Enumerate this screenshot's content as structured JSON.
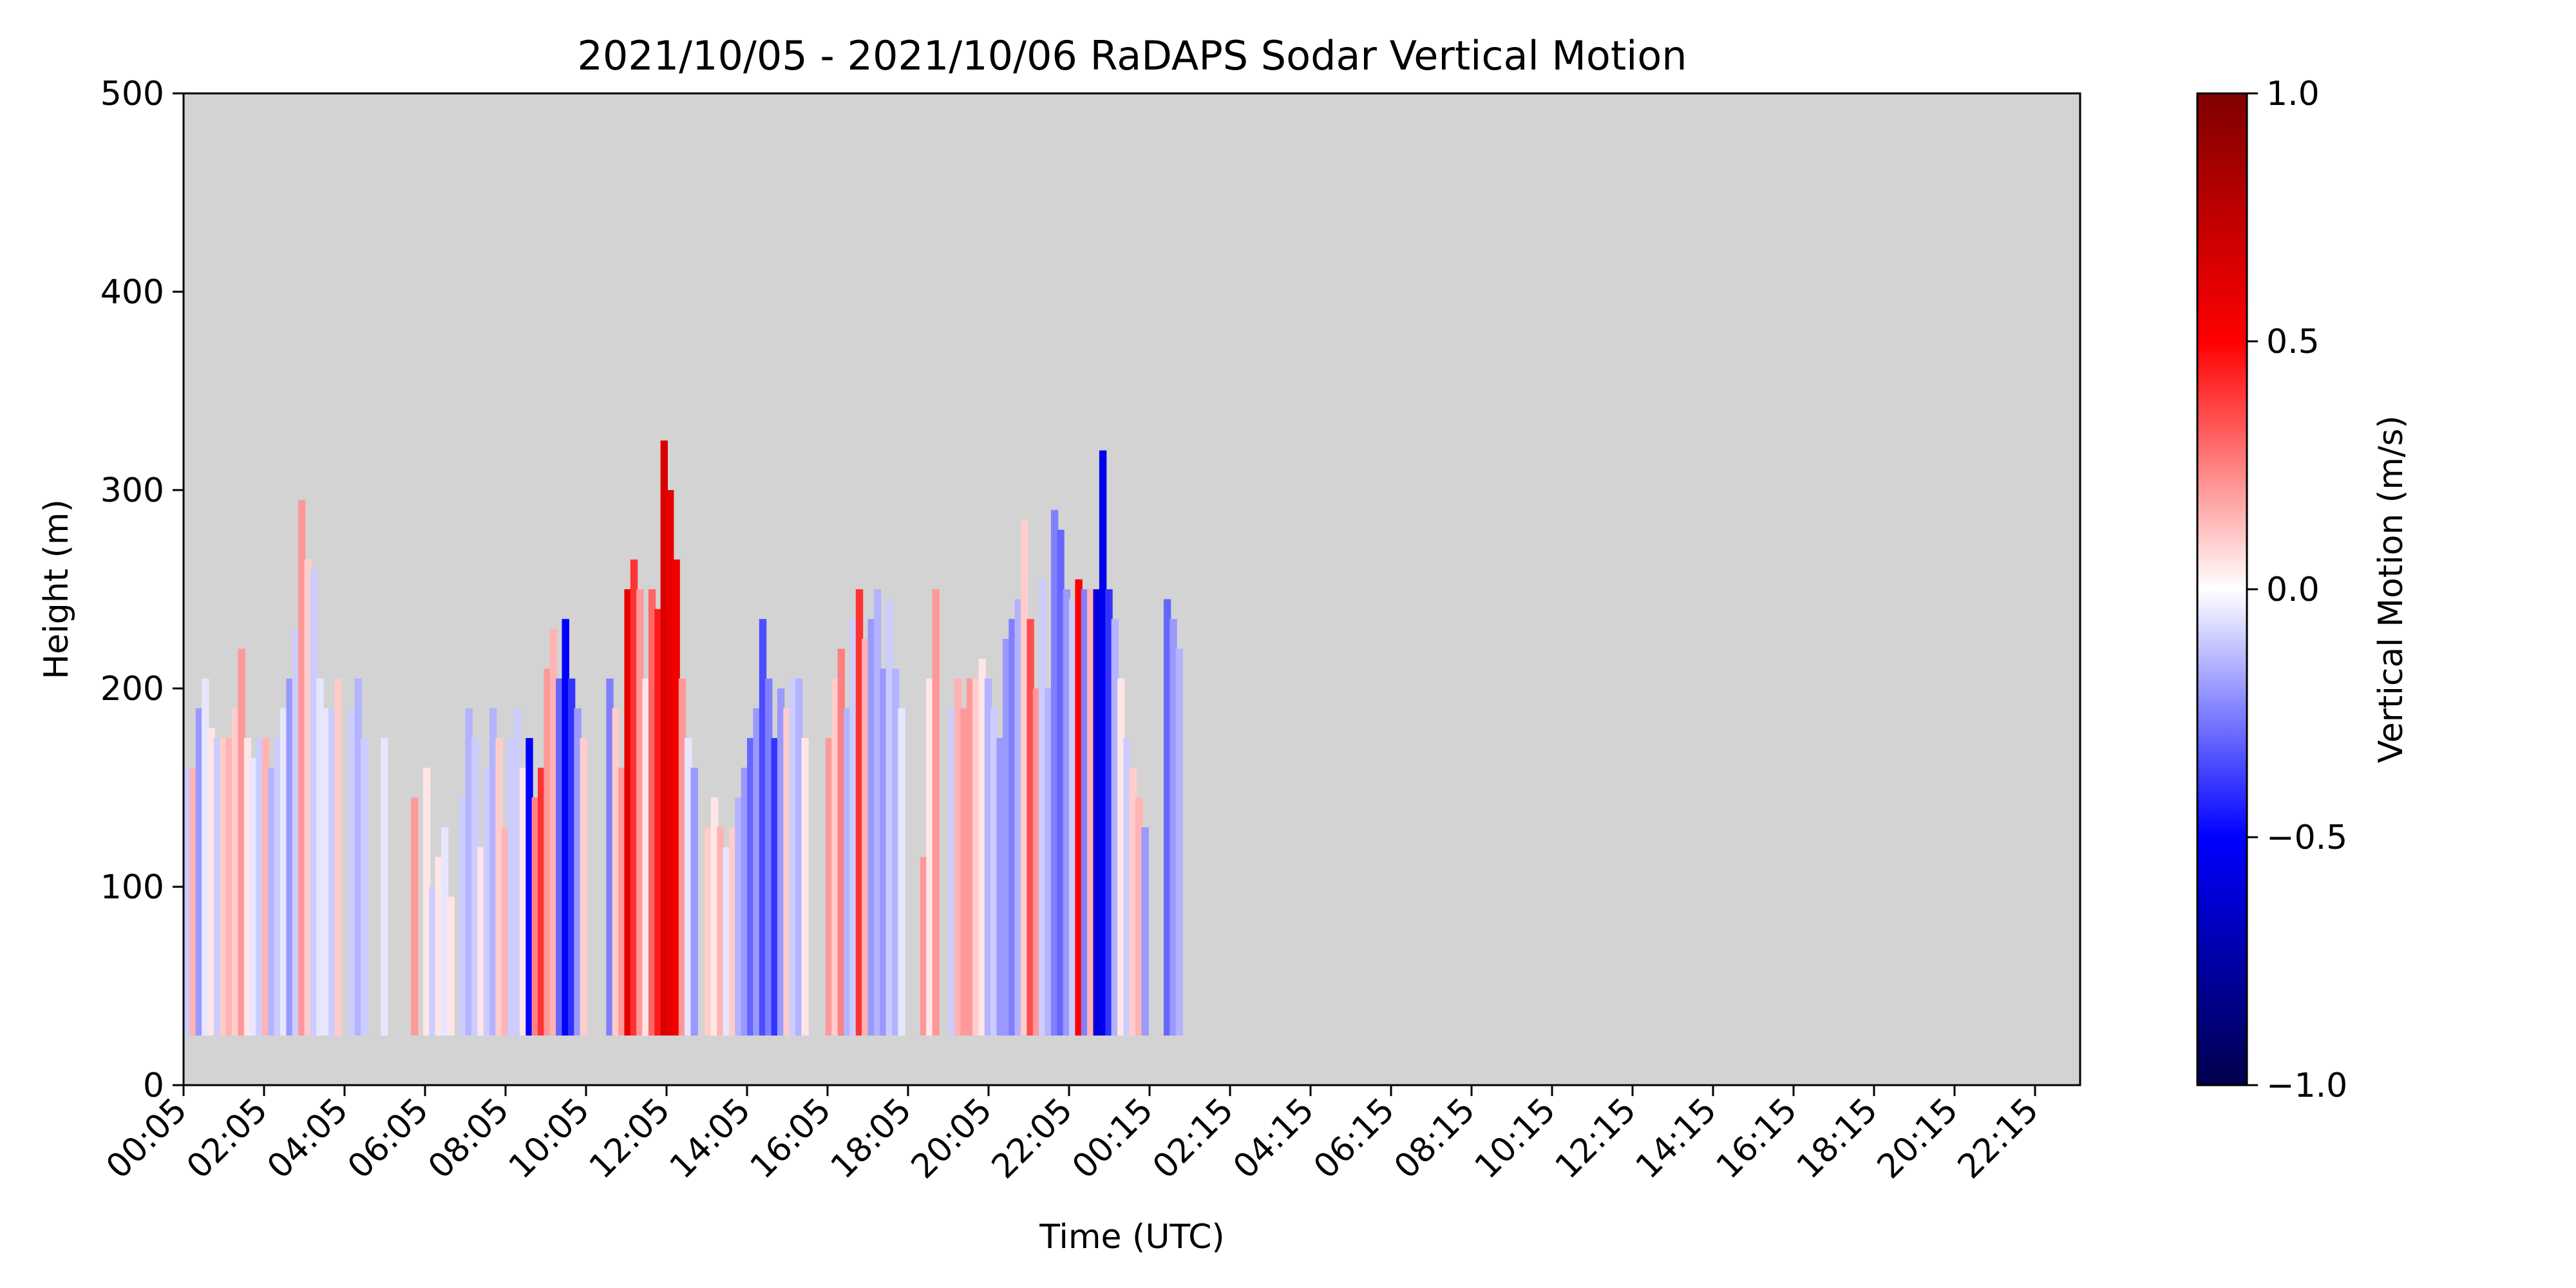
{
  "chart_data": {
    "type": "heatmap",
    "title": "2021/10/05 - 2021/10/06 RaDAPS Sodar Vertical Motion",
    "xlabel": "Time (UTC)",
    "ylabel": "Height (m)",
    "x_tick_labels": [
      "00:05",
      "02:05",
      "04:05",
      "06:05",
      "08:05",
      "10:05",
      "12:05",
      "14:05",
      "16:05",
      "18:05",
      "20:05",
      "22:05",
      "00:15",
      "02:15",
      "04:15",
      "06:15",
      "08:15",
      "10:15",
      "12:15",
      "14:15",
      "16:15",
      "18:15",
      "20:15",
      "22:15"
    ],
    "ylim": [
      0,
      500
    ],
    "y_ticks": [
      0,
      100,
      200,
      300,
      400,
      500
    ],
    "colorbar": {
      "label": "Vertical Motion (m/s)",
      "range": [
        -1.0,
        1.0
      ],
      "ticks": [
        "1.0",
        "0.5",
        "0.0",
        "−0.5",
        "−1.0"
      ],
      "colormap": "seismic",
      "colors": {
        "low": "#00004c",
        "mid_low": "#0000ff",
        "mid": "#ffffff",
        "mid_high": "#ff0000",
        "high": "#800000"
      }
    },
    "background_color": "#d3d3d3",
    "min_height": 25,
    "x_units": "hours since 2021/10/05 00:05 UTC",
    "columns": [
      {
        "x": 0.0,
        "top": 160,
        "w": -0.1
      },
      {
        "x": 0.15,
        "top": 160,
        "w": 0.15
      },
      {
        "x": 0.3,
        "top": 190,
        "w": -0.2
      },
      {
        "x": 0.45,
        "top": 205,
        "w": -0.05
      },
      {
        "x": 0.6,
        "top": 180,
        "w": 0.05
      },
      {
        "x": 0.75,
        "top": 175,
        "w": -0.1
      },
      {
        "x": 0.9,
        "top": 175,
        "w": 0.1
      },
      {
        "x": 1.05,
        "top": 175,
        "w": 0.15
      },
      {
        "x": 1.2,
        "top": 190,
        "w": 0.1
      },
      {
        "x": 1.35,
        "top": 220,
        "w": 0.2
      },
      {
        "x": 1.5,
        "top": 175,
        "w": 0.05
      },
      {
        "x": 1.65,
        "top": 165,
        "w": -0.05
      },
      {
        "x": 1.8,
        "top": 175,
        "w": -0.1
      },
      {
        "x": 1.95,
        "top": 175,
        "w": 0.15
      },
      {
        "x": 2.1,
        "top": 160,
        "w": -0.15
      },
      {
        "x": 2.25,
        "top": 175,
        "w": -0.1
      },
      {
        "x": 2.4,
        "top": 190,
        "w": -0.05
      },
      {
        "x": 2.55,
        "top": 205,
        "w": -0.2
      },
      {
        "x": 2.7,
        "top": 230,
        "w": -0.1
      },
      {
        "x": 2.85,
        "top": 295,
        "w": 0.2
      },
      {
        "x": 3.0,
        "top": 265,
        "w": 0.1
      },
      {
        "x": 3.15,
        "top": 260,
        "w": -0.1
      },
      {
        "x": 3.3,
        "top": 205,
        "w": -0.05
      },
      {
        "x": 3.45,
        "top": 190,
        "w": -0.05
      },
      {
        "x": 3.6,
        "top": 190,
        "w": -0.1
      },
      {
        "x": 3.75,
        "top": 205,
        "w": 0.1
      },
      {
        "x": 4.1,
        "top": 190,
        "w": -0.1
      },
      {
        "x": 4.25,
        "top": 205,
        "w": -0.15
      },
      {
        "x": 4.4,
        "top": 175,
        "w": -0.1
      },
      {
        "x": 4.9,
        "top": 175,
        "w": -0.05
      },
      {
        "x": 5.65,
        "top": 145,
        "w": 0.2
      },
      {
        "x": 5.95,
        "top": 160,
        "w": 0.05
      },
      {
        "x": 6.1,
        "top": 100,
        "w": -0.1
      },
      {
        "x": 6.25,
        "top": 115,
        "w": 0.05
      },
      {
        "x": 6.4,
        "top": 130,
        "w": -0.05
      },
      {
        "x": 6.55,
        "top": 95,
        "w": 0.05
      },
      {
        "x": 6.85,
        "top": 145,
        "w": -0.1
      },
      {
        "x": 7.0,
        "top": 190,
        "w": -0.15
      },
      {
        "x": 7.15,
        "top": 175,
        "w": -0.1
      },
      {
        "x": 7.3,
        "top": 120,
        "w": 0.05
      },
      {
        "x": 7.45,
        "top": 160,
        "w": -0.1
      },
      {
        "x": 7.6,
        "top": 190,
        "w": -0.15
      },
      {
        "x": 7.75,
        "top": 175,
        "w": 0.1
      },
      {
        "x": 7.9,
        "top": 130,
        "w": 0.15
      },
      {
        "x": 8.05,
        "top": 175,
        "w": -0.1
      },
      {
        "x": 8.2,
        "top": 190,
        "w": -0.1
      },
      {
        "x": 8.35,
        "top": 160,
        "w": 0.05
      },
      {
        "x": 8.5,
        "top": 175,
        "w": -0.5
      },
      {
        "x": 8.65,
        "top": 145,
        "w": 0.25
      },
      {
        "x": 8.8,
        "top": 160,
        "w": 0.4
      },
      {
        "x": 8.95,
        "top": 210,
        "w": 0.2
      },
      {
        "x": 9.1,
        "top": 230,
        "w": 0.15
      },
      {
        "x": 9.25,
        "top": 205,
        "w": -0.3
      },
      {
        "x": 9.4,
        "top": 235,
        "w": -0.5
      },
      {
        "x": 9.55,
        "top": 205,
        "w": -0.4
      },
      {
        "x": 9.7,
        "top": 190,
        "w": -0.2
      },
      {
        "x": 9.85,
        "top": 175,
        "w": 0.1
      },
      {
        "x": 10.5,
        "top": 205,
        "w": -0.25
      },
      {
        "x": 10.65,
        "top": 190,
        "w": 0.1
      },
      {
        "x": 10.8,
        "top": 160,
        "w": 0.2
      },
      {
        "x": 10.95,
        "top": 250,
        "w": 0.6
      },
      {
        "x": 11.1,
        "top": 265,
        "w": 0.4
      },
      {
        "x": 11.25,
        "top": 250,
        "w": 0.2
      },
      {
        "x": 11.4,
        "top": 205,
        "w": 0.05
      },
      {
        "x": 11.55,
        "top": 250,
        "w": 0.3
      },
      {
        "x": 11.7,
        "top": 240,
        "w": 0.45
      },
      {
        "x": 11.85,
        "top": 325,
        "w": 0.65
      },
      {
        "x": 12.0,
        "top": 300,
        "w": 0.6
      },
      {
        "x": 12.15,
        "top": 265,
        "w": 0.55
      },
      {
        "x": 12.3,
        "top": 205,
        "w": 0.2
      },
      {
        "x": 12.45,
        "top": 175,
        "w": -0.05
      },
      {
        "x": 12.6,
        "top": 160,
        "w": -0.2
      },
      {
        "x": 12.95,
        "top": 130,
        "w": 0.1
      },
      {
        "x": 13.1,
        "top": 145,
        "w": 0.05
      },
      {
        "x": 13.25,
        "top": 130,
        "w": 0.15
      },
      {
        "x": 13.4,
        "top": 120,
        "w": -0.05
      },
      {
        "x": 13.55,
        "top": 130,
        "w": 0.1
      },
      {
        "x": 13.7,
        "top": 145,
        "w": -0.15
      },
      {
        "x": 13.85,
        "top": 160,
        "w": -0.2
      },
      {
        "x": 14.0,
        "top": 175,
        "w": -0.3
      },
      {
        "x": 14.15,
        "top": 190,
        "w": -0.2
      },
      {
        "x": 14.3,
        "top": 235,
        "w": -0.35
      },
      {
        "x": 14.45,
        "top": 205,
        "w": -0.25
      },
      {
        "x": 14.6,
        "top": 175,
        "w": -0.4
      },
      {
        "x": 14.75,
        "top": 200,
        "w": -0.2
      },
      {
        "x": 14.9,
        "top": 190,
        "w": 0.1
      },
      {
        "x": 15.05,
        "top": 205,
        "w": -0.1
      },
      {
        "x": 15.2,
        "top": 205,
        "w": -0.15
      },
      {
        "x": 15.35,
        "top": 175,
        "w": 0.05
      },
      {
        "x": 15.95,
        "top": 175,
        "w": 0.2
      },
      {
        "x": 16.1,
        "top": 205,
        "w": 0.1
      },
      {
        "x": 16.25,
        "top": 220,
        "w": 0.25
      },
      {
        "x": 16.4,
        "top": 190,
        "w": -0.15
      },
      {
        "x": 16.55,
        "top": 235,
        "w": -0.1
      },
      {
        "x": 16.7,
        "top": 250,
        "w": 0.4
      },
      {
        "x": 16.85,
        "top": 225,
        "w": 0.15
      },
      {
        "x": 17.0,
        "top": 235,
        "w": -0.2
      },
      {
        "x": 17.15,
        "top": 250,
        "w": -0.15
      },
      {
        "x": 17.3,
        "top": 210,
        "w": -0.2
      },
      {
        "x": 17.45,
        "top": 245,
        "w": -0.1
      },
      {
        "x": 17.6,
        "top": 210,
        "w": -0.15
      },
      {
        "x": 17.75,
        "top": 190,
        "w": -0.05
      },
      {
        "x": 18.3,
        "top": 115,
        "w": 0.2
      },
      {
        "x": 18.45,
        "top": 205,
        "w": 0.05
      },
      {
        "x": 18.6,
        "top": 250,
        "w": 0.2
      },
      {
        "x": 19.0,
        "top": 190,
        "w": -0.1
      },
      {
        "x": 19.15,
        "top": 205,
        "w": 0.15
      },
      {
        "x": 19.3,
        "top": 190,
        "w": 0.2
      },
      {
        "x": 19.45,
        "top": 205,
        "w": 0.2
      },
      {
        "x": 19.6,
        "top": 205,
        "w": 0.1
      },
      {
        "x": 19.75,
        "top": 215,
        "w": 0.05
      },
      {
        "x": 19.9,
        "top": 205,
        "w": -0.15
      },
      {
        "x": 20.05,
        "top": 190,
        "w": -0.1
      },
      {
        "x": 20.2,
        "top": 175,
        "w": -0.2
      },
      {
        "x": 20.35,
        "top": 225,
        "w": -0.2
      },
      {
        "x": 20.5,
        "top": 235,
        "w": -0.25
      },
      {
        "x": 20.65,
        "top": 245,
        "w": -0.15
      },
      {
        "x": 20.8,
        "top": 285,
        "w": 0.1
      },
      {
        "x": 20.95,
        "top": 235,
        "w": 0.35
      },
      {
        "x": 21.1,
        "top": 200,
        "w": 0.2
      },
      {
        "x": 21.25,
        "top": 255,
        "w": -0.1
      },
      {
        "x": 21.4,
        "top": 200,
        "w": -0.15
      },
      {
        "x": 21.55,
        "top": 290,
        "w": -0.25
      },
      {
        "x": 21.7,
        "top": 280,
        "w": -0.3
      },
      {
        "x": 21.85,
        "top": 250,
        "w": -0.2
      },
      {
        "x": 22.0,
        "top": 245,
        "w": -0.1
      },
      {
        "x": 22.15,
        "top": 255,
        "w": 0.5
      },
      {
        "x": 22.3,
        "top": 250,
        "w": -0.25
      },
      {
        "x": 22.45,
        "top": 250,
        "w": 0.15
      },
      {
        "x": 22.6,
        "top": 250,
        "w": -0.6
      },
      {
        "x": 22.75,
        "top": 320,
        "w": -0.55
      },
      {
        "x": 22.9,
        "top": 250,
        "w": -0.4
      },
      {
        "x": 23.05,
        "top": 235,
        "w": -0.15
      },
      {
        "x": 23.2,
        "top": 205,
        "w": 0.05
      },
      {
        "x": 23.35,
        "top": 175,
        "w": -0.1
      },
      {
        "x": 23.5,
        "top": 160,
        "w": 0.1
      },
      {
        "x": 23.65,
        "top": 145,
        "w": 0.15
      },
      {
        "x": 23.8,
        "top": 130,
        "w": -0.2
      },
      {
        "x": 24.35,
        "top": 245,
        "w": -0.3
      },
      {
        "x": 24.5,
        "top": 235,
        "w": -0.2
      },
      {
        "x": 24.65,
        "top": 220,
        "w": -0.15
      }
    ]
  }
}
